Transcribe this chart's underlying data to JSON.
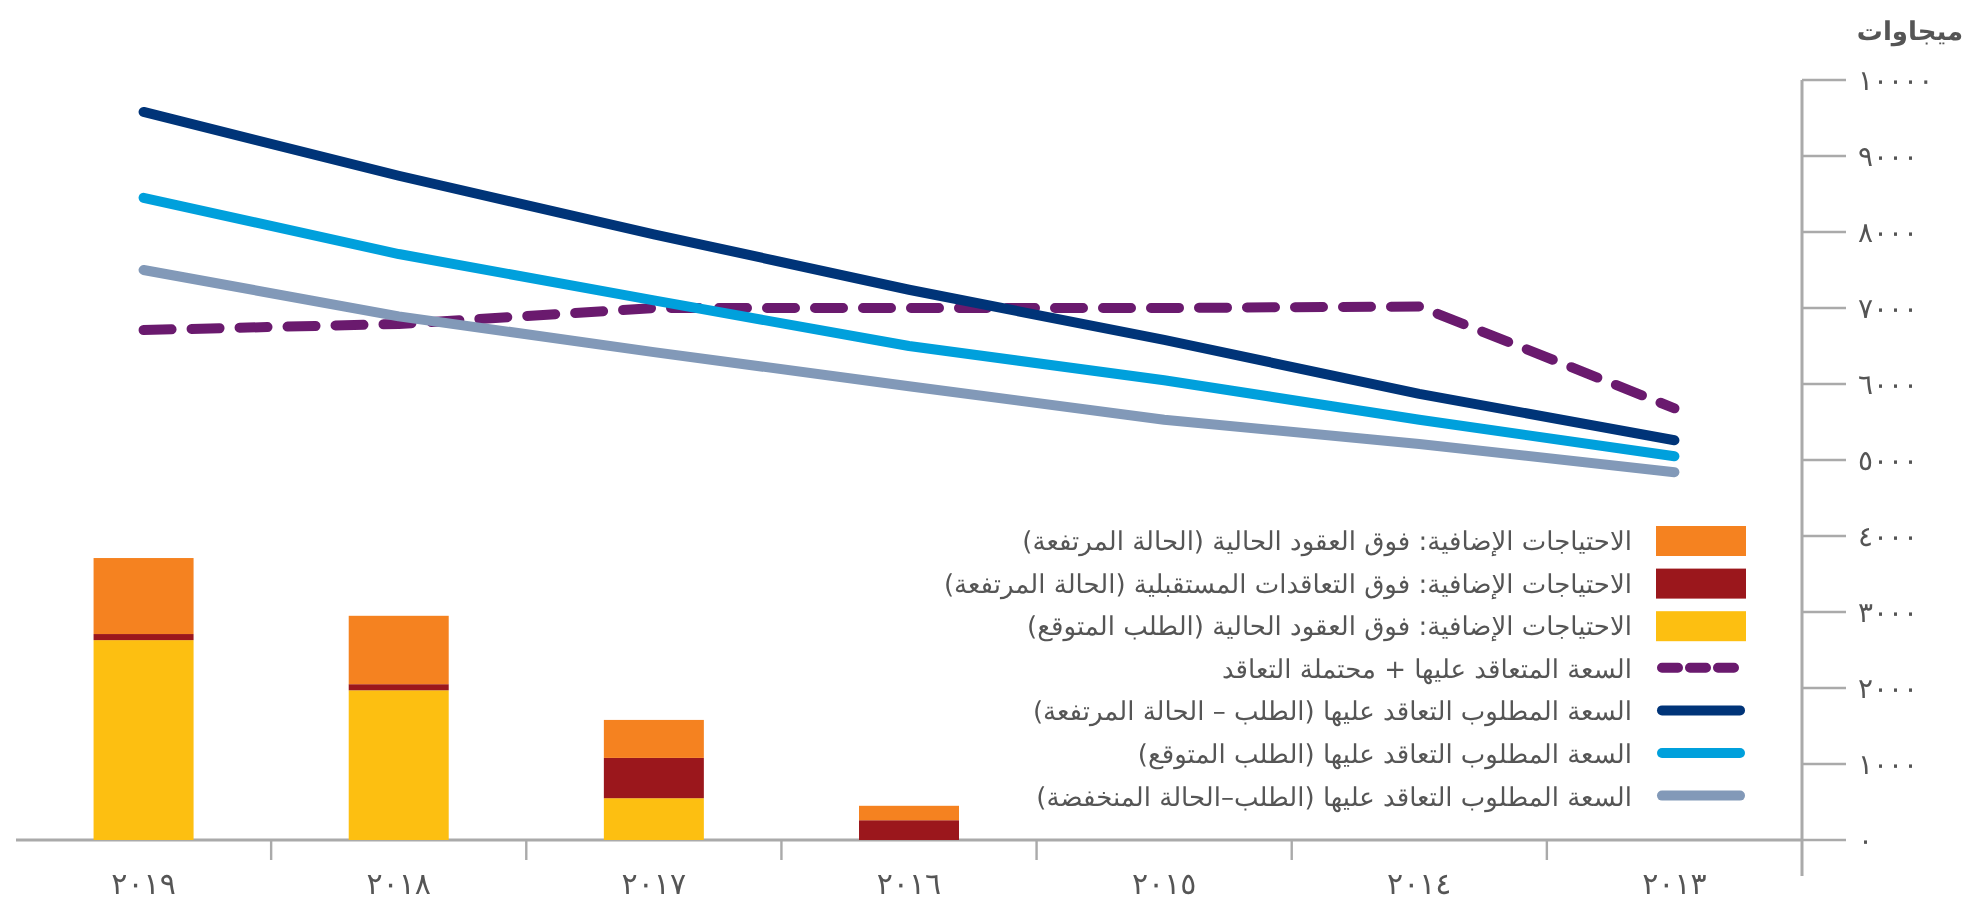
{
  "chart_data": {
    "type": "bar",
    "stacked": true,
    "ylabel": "ميجاوات",
    "legend": "bottom right",
    "categories": [
      "٢٠١٩",
      "٢٠١٨",
      "٢٠١٧",
      "٢٠١٦",
      "٢٠١٥",
      "٢٠١٤",
      "٢٠١٣"
    ],
    "ylim": [
      0,
      10000
    ],
    "yticks": [
      {
        "value": 0,
        "label": "٠"
      },
      {
        "value": 1000,
        "label": "١٠٠٠"
      },
      {
        "value": 2000,
        "label": "٢٠٠٠"
      },
      {
        "value": 3000,
        "label": "٣٠٠٠"
      },
      {
        "value": 4000,
        "label": "٤٠٠٠"
      },
      {
        "value": 5000,
        "label": "٥٠٠٠"
      },
      {
        "value": 6000,
        "label": "٦٠٠٠"
      },
      {
        "value": 7000,
        "label": "٧٠٠٠"
      },
      {
        "value": 8000,
        "label": "٨٠٠٠"
      },
      {
        "value": 9000,
        "label": "٩٠٠٠"
      },
      {
        "value": 10000,
        "label": "١٠٠٠٠"
      }
    ],
    "series": [
      {
        "type": "bar",
        "name": "الاحتياجات الإضافية: فوق العقود الحالية (الطلب المتوقع)",
        "color": "#fdbf11",
        "values": [
          2630,
          1970,
          550,
          null,
          null,
          null,
          null
        ]
      },
      {
        "type": "bar",
        "name": "الاحتياجات الإضافية: فوق التعاقدات المستقبلية (الحالة المرتفعة)",
        "color": "#9b171c",
        "values": [
          80,
          80,
          530,
          260,
          null,
          null,
          null
        ]
      },
      {
        "type": "bar",
        "name": "الاحتياجات الإضافية: فوق العقود الحالية (الحالة المرتفعة)",
        "color": "#f58220",
        "values": [
          1000,
          900,
          500,
          190,
          null,
          null,
          null
        ]
      },
      {
        "type": "line",
        "line_style": "dashed",
        "name": "السعة المتعاقد عليها + محتملة التعاقد",
        "color": "#6a1a6e",
        "values": [
          6710,
          6790,
          7000,
          7000,
          7000,
          7020,
          5680
        ]
      },
      {
        "type": "line",
        "name": "السعة المطلوب التعاقد عليها (الطلب – الحالة المرتفعة)",
        "color": "#003478",
        "values": [
          9580,
          8740,
          7970,
          7240,
          6580,
          5870,
          5260
        ]
      },
      {
        "type": "line",
        "name": "السعة المطلوب التعاقد عليها (الطلب المتوقع)",
        "color": "#00a0dc",
        "values": [
          8450,
          7710,
          7100,
          6500,
          6050,
          5530,
          5050
        ]
      },
      {
        "type": "line",
        "name": "السعة المطلوب التعاقد عليها (الطلب–الحالة المنخفضة)",
        "color": "#8299b8",
        "values": [
          7500,
          6890,
          6420,
          5970,
          5530,
          5210,
          4840
        ]
      }
    ]
  }
}
